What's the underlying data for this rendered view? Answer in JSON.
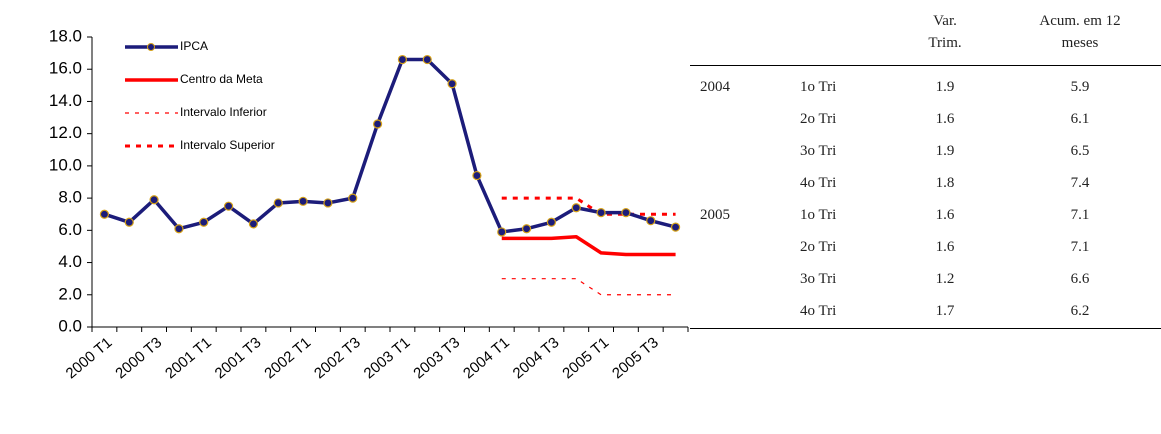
{
  "chart_data": {
    "type": "line",
    "categories": [
      "2000 T1",
      null,
      "2000 T3",
      null,
      "2001 T1",
      null,
      "2001 T3",
      null,
      "2002 T1",
      null,
      "2002 T3",
      null,
      "2003 T1",
      null,
      "2003 T3",
      null,
      "2004 T1",
      null,
      "2004 T3",
      null,
      "2005 T1",
      null,
      "2005 T3",
      null
    ],
    "series": [
      {
        "name": "IPCA",
        "color": "#1c1c7a",
        "line_style": "solid",
        "marker": true,
        "values": [
          7.0,
          6.5,
          7.9,
          6.1,
          6.5,
          7.5,
          6.4,
          7.7,
          7.8,
          7.7,
          8.0,
          12.6,
          16.6,
          16.6,
          15.1,
          9.4,
          5.9,
          6.1,
          6.5,
          7.4,
          7.1,
          7.1,
          6.6,
          6.2
        ]
      },
      {
        "name": "Centro da Meta",
        "color": "#ff0000",
        "line_style": "solid",
        "marker": false,
        "values": [
          null,
          null,
          null,
          null,
          null,
          null,
          null,
          null,
          null,
          null,
          null,
          null,
          null,
          null,
          null,
          null,
          5.5,
          5.5,
          5.5,
          5.6,
          4.6,
          4.5,
          4.5,
          4.5
        ]
      },
      {
        "name": "Intervalo Inferior",
        "color": "#ff0000",
        "line_style": "dashed",
        "marker": false,
        "values": [
          null,
          null,
          null,
          null,
          null,
          null,
          null,
          null,
          null,
          null,
          null,
          null,
          null,
          null,
          null,
          null,
          3.0,
          3.0,
          3.0,
          3.0,
          2.0,
          2.0,
          2.0,
          2.0
        ]
      },
      {
        "name": "Intervalo Superior",
        "color": "#ff0000",
        "line_style": "dashed-bold",
        "marker": false,
        "values": [
          null,
          null,
          null,
          null,
          null,
          null,
          null,
          null,
          null,
          null,
          null,
          null,
          null,
          null,
          null,
          null,
          8.0,
          8.0,
          8.0,
          8.0,
          7.0,
          7.0,
          7.0,
          7.0
        ]
      }
    ],
    "ylim": [
      0,
      18
    ],
    "yticks": [
      {
        "value": 0,
        "label": "0.0"
      },
      {
        "value": 2,
        "label": "2.0"
      },
      {
        "value": 4,
        "label": "4.0"
      },
      {
        "value": 6,
        "label": "6.0"
      },
      {
        "value": 8,
        "label": "8.0"
      },
      {
        "value": 10,
        "label": "10.0"
      },
      {
        "value": 12,
        "label": "12.0"
      },
      {
        "value": 14,
        "label": "14.0"
      },
      {
        "value": 16,
        "label": "16.0"
      },
      {
        "value": 18,
        "label": "18.0"
      }
    ],
    "legend": "upper-left"
  },
  "table": {
    "header": [
      "Var. Trim.",
      "Acum. em 12 meses"
    ],
    "rows": [
      [
        "2004",
        "1o Tri",
        1.9,
        5.9
      ],
      [
        null,
        "2o Tri",
        1.6,
        6.1
      ],
      [
        null,
        "3o Tri",
        1.9,
        6.5
      ],
      [
        null,
        "4o Tri",
        1.8,
        7.4
      ],
      [
        "2005",
        "1o Tri",
        1.6,
        7.1
      ],
      [
        null,
        "2o Tri",
        1.6,
        7.1
      ],
      [
        null,
        "3o Tri",
        1.2,
        6.6
      ],
      [
        null,
        "4o Tri",
        1.7,
        6.2
      ]
    ]
  }
}
